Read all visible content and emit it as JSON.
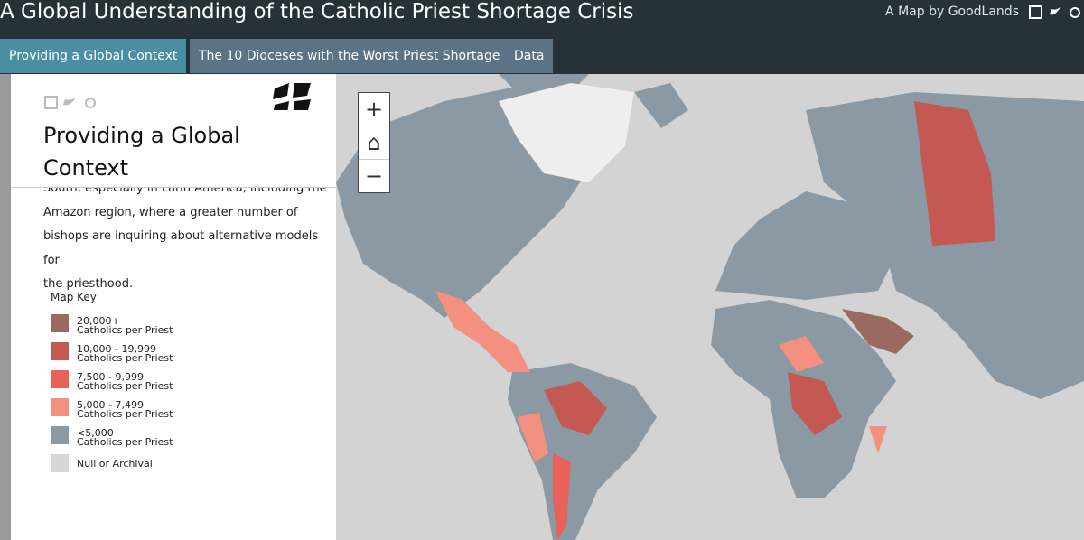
{
  "header": {
    "title": "A Global Understanding of the Catholic Priest Shortage Crisis",
    "byline": "A Map by GoodLands"
  },
  "tabs": [
    "Providing a Global Context",
    "The 10 Dioceses with the Worst Priest Shortage",
    "Data"
  ],
  "panel": {
    "title_lines": [
      "Providing a Global",
      "Context"
    ],
    "body_lines": [
      "South, especially in Latin America, including the",
      "Amazon region, where a greater number of",
      "bishops are inquiring about alternative models for",
      "the priesthood."
    ]
  },
  "map_key": {
    "title": "Map Key",
    "items": [
      {
        "lines": [
          "20,000+",
          "Catholics per Priest"
        ],
        "color": "#9a6a60"
      },
      {
        "lines": [
          "10,000 - 19,999",
          "Catholics per Priest"
        ],
        "color": "#c45852"
      },
      {
        "lines": [
          "7,500 - 9,999",
          "Catholics per Priest"
        ],
        "color": "#e8625a"
      },
      {
        "lines": [
          "5,000 - 7,499",
          "Catholics per Priest"
        ],
        "color": "#f39080"
      },
      {
        "lines": [
          "<5,000",
          "Catholics per Priest"
        ],
        "color": "#8a99a3"
      },
      {
        "lines": [
          "Null or Archival"
        ],
        "color": "#d6d6d6"
      }
    ]
  },
  "zoom": [
    "+",
    "−"
  ]
}
